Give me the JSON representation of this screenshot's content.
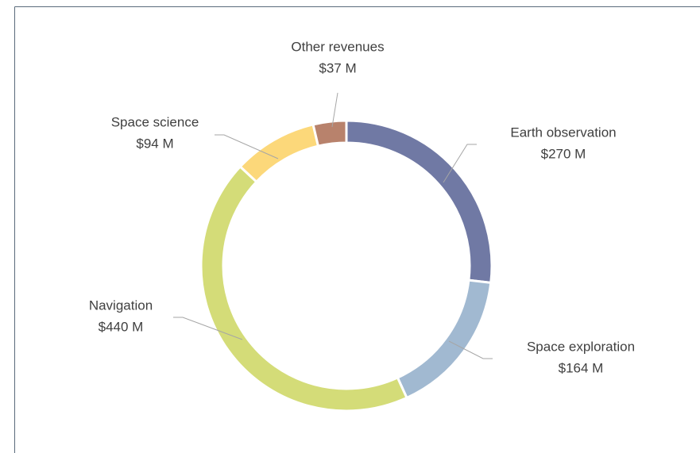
{
  "chart_data": {
    "type": "donut",
    "categories": [
      "Earth observation",
      "Space exploration",
      "Navigation",
      "Space science",
      "Other revenues"
    ],
    "values": [
      270,
      164,
      440,
      94,
      37
    ],
    "value_labels": [
      "$270 M",
      "$164 M",
      "$440 M",
      "$94 M",
      "$37 M"
    ],
    "colors": [
      "#7079a4",
      "#a1b9d1",
      "#d4dc78",
      "#fcd87a",
      "#b8826c"
    ]
  }
}
